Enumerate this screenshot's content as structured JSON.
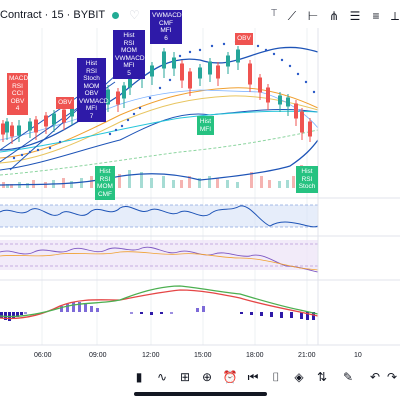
{
  "header": {
    "title": "Contract · 15 · BYBIT",
    "menu_label": "T"
  },
  "toolbar": {
    "tools": [
      "trend-line-icon",
      "horizontal-line-icon",
      "pitchfork-icon",
      "fib-retracement-icon",
      "text-icon",
      "ruler-icon"
    ]
  },
  "signals": [
    {
      "id": "macd-rsi-cci-obv",
      "color": "#ef5350",
      "lines": [
        "MACD",
        "RSI",
        "CCI",
        "OBV",
        "4"
      ]
    },
    {
      "id": "obv-left",
      "color": "#ef5350",
      "lines": [
        "OBV"
      ]
    },
    {
      "id": "hist-rsi-stoch",
      "color": "#2e1aa8",
      "lines": [
        "Hist",
        "RSI",
        "Stoch",
        "MOM",
        "OBV",
        "VWMACD",
        "MFI",
        "7"
      ]
    },
    {
      "id": "hist-rsi-mom",
      "color": "#2e1aa8",
      "lines": [
        "Hist",
        "RSI",
        "MOM",
        "VWMACD",
        "MFI",
        "5"
      ]
    },
    {
      "id": "vwmacd-cmf-mfi",
      "color": "#2e1aa8",
      "lines": [
        "VWMACD",
        "CMF",
        "MFI",
        "6"
      ]
    },
    {
      "id": "obv-right",
      "color": "#ef5350",
      "lines": [
        "OBV"
      ]
    },
    {
      "id": "hist-mfi",
      "color": "#26c281",
      "lines": [
        "Hist",
        "MFI"
      ]
    },
    {
      "id": "hist-rsi-mom-cmf",
      "color": "#26c281",
      "lines": [
        "Hist",
        "RSI",
        "MOM",
        "CMF"
      ]
    },
    {
      "id": "hist-rsi-stoch-bottom",
      "color": "#26c281",
      "lines": [
        "Hist",
        "RSI",
        "Stoch"
      ]
    }
  ],
  "time_axis": {
    "labels": [
      "06:00",
      "09:00",
      "12:00",
      "15:00",
      "18:00",
      "21:00",
      "10"
    ]
  },
  "bottom_toolbar": {
    "tools": [
      "candles-icon",
      "indicators-icon",
      "layouts-icon",
      "add-icon",
      "alert-icon",
      "replay-icon",
      "brackets-icon",
      "layers-icon",
      "settings-icon",
      "drawing-icon",
      "undo-icon",
      "redo-icon"
    ]
  },
  "colors": {
    "up": "#26a69a",
    "down": "#ef5350",
    "bollinger": "#1e54b7",
    "sar": "#2a5ac8",
    "ma_orange": "#f0a030",
    "ma_teal": "#26c6da",
    "osc_band": "#d6e1f7",
    "osc_band2": "#ece2f7"
  }
}
